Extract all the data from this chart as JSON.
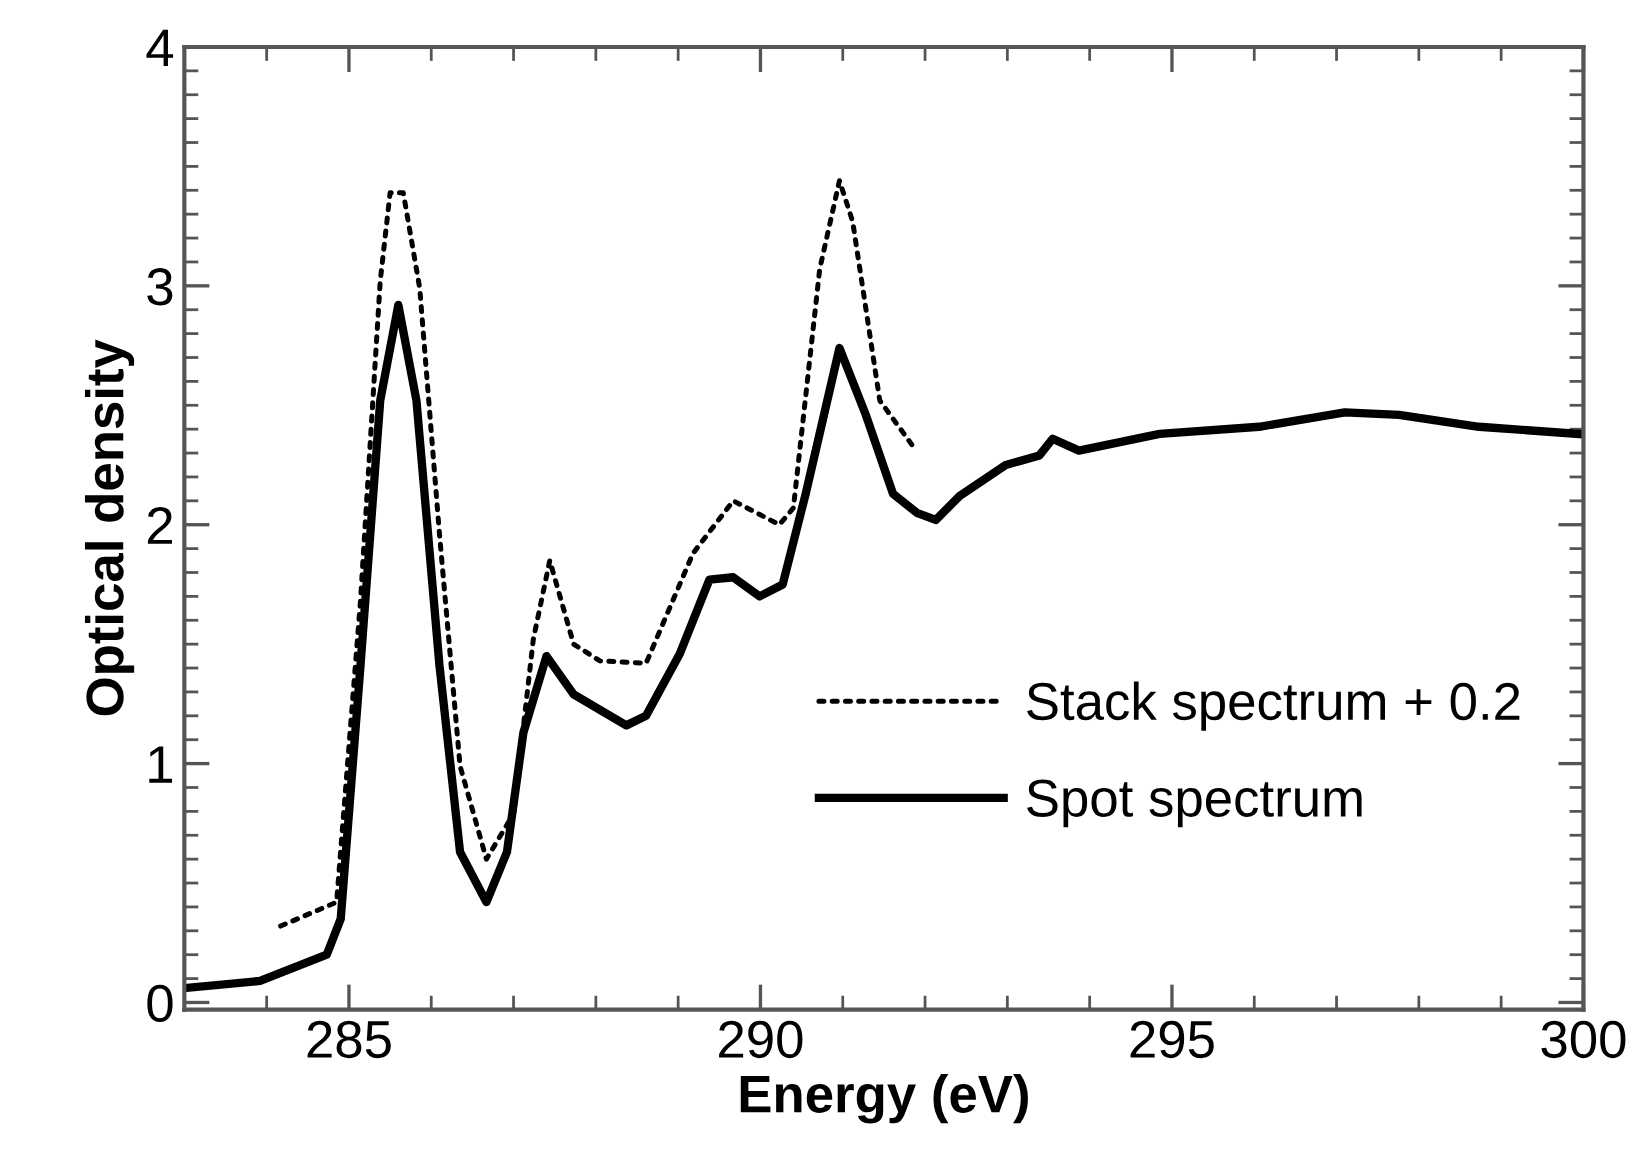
{
  "chart_data": {
    "type": "line",
    "xlabel": "Energy (eV)",
    "ylabel": "Optical density",
    "xlim": [
      283,
      300
    ],
    "ylim": [
      -0.03,
      4
    ],
    "xticks": [
      285,
      290,
      295,
      300
    ],
    "yticks": [
      0,
      1,
      2,
      3,
      4
    ],
    "grid": false,
    "legend": "bottom right",
    "marker": "none",
    "series": [
      {
        "name": "Stack spectrum + 0.2",
        "color": "#000000",
        "line_style": "dotted",
        "x": [
          284.17,
          284.85,
          285.14,
          285.38,
          285.5,
          285.66,
          285.86,
          286.1,
          286.35,
          286.67,
          287.0,
          287.24,
          287.44,
          287.73,
          288.05,
          288.61,
          289.18,
          289.67,
          290.23,
          290.4,
          290.72,
          290.96,
          291.12,
          291.45,
          291.85
        ],
        "values": [
          0.32,
          0.42,
          1.68,
          3.02,
          3.39,
          3.39,
          2.99,
          1.96,
          0.99,
          0.6,
          0.79,
          1.52,
          1.85,
          1.5,
          1.43,
          1.42,
          1.88,
          2.1,
          2.0,
          2.07,
          3.07,
          3.44,
          3.27,
          2.52,
          2.33
        ]
      },
      {
        "name": "Spot spectrum",
        "color": "#000000",
        "line_style": "solid",
        "x": [
          283.0,
          283.92,
          284.73,
          284.9,
          285.14,
          285.38,
          285.6,
          285.82,
          286.1,
          286.35,
          286.67,
          286.92,
          287.12,
          287.4,
          287.73,
          288.37,
          288.61,
          289.02,
          289.38,
          289.67,
          289.99,
          290.27,
          290.55,
          290.96,
          291.28,
          291.61,
          291.9,
          292.13,
          292.42,
          292.98,
          293.39,
          293.55,
          293.87,
          294.85,
          296.06,
          297.1,
          297.76,
          298.73,
          299.94
        ],
        "values": [
          0.06,
          0.09,
          0.2,
          0.35,
          1.41,
          2.52,
          2.92,
          2.52,
          1.41,
          0.63,
          0.42,
          0.63,
          1.13,
          1.45,
          1.29,
          1.16,
          1.2,
          1.46,
          1.77,
          1.78,
          1.7,
          1.75,
          2.13,
          2.74,
          2.46,
          2.13,
          2.05,
          2.02,
          2.12,
          2.25,
          2.29,
          2.36,
          2.31,
          2.38,
          2.41,
          2.47,
          2.46,
          2.41,
          2.38
        ]
      }
    ]
  }
}
